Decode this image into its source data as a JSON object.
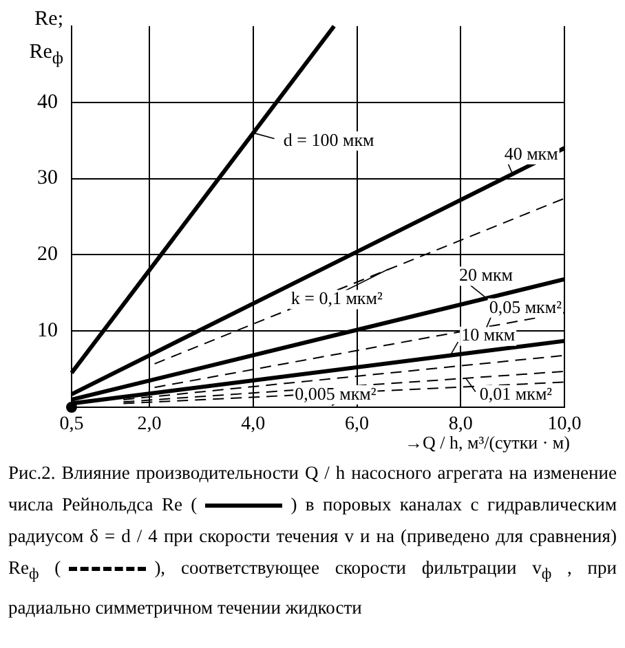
{
  "chart_data": {
    "type": "line",
    "ylabel": "Re;\nRe$_{ф}$",
    "xlabel": "→Q / h, м³/(сутки · м)",
    "xlim": [
      0.5,
      10
    ],
    "ylim": [
      0,
      50
    ],
    "xticks": [
      {
        "value": 0.5,
        "label": "0,5"
      },
      {
        "value": 2,
        "label": "2,0"
      },
      {
        "value": 4,
        "label": "4,0"
      },
      {
        "value": 6,
        "label": "6,0"
      },
      {
        "value": 8,
        "label": "8,0"
      },
      {
        "value": 10,
        "label": "10,0"
      }
    ],
    "yticks": [
      10,
      20,
      30,
      40
    ],
    "grid": true,
    "legend": false,
    "marker": "none",
    "series": [
      {
        "x": [
          0.5,
          5.56
        ],
        "values": [
          4.5,
          50
        ],
        "color": "#000000",
        "line_style": "solid"
      },
      {
        "x": [
          0.5,
          10
        ],
        "values": [
          1.7,
          34
        ],
        "color": "#000000",
        "line_style": "solid"
      },
      {
        "x": [
          0.5,
          10
        ],
        "values": [
          1.0,
          16.8
        ],
        "color": "#000000",
        "line_style": "solid"
      },
      {
        "x": [
          0.5,
          10
        ],
        "values": [
          0.5,
          8.7
        ],
        "color": "#000000",
        "line_style": "solid"
      },
      {
        "x": [
          2.1,
          10
        ],
        "values": [
          5.7,
          27.4
        ],
        "color": "#000000",
        "line_style": "dashed"
      },
      {
        "x": [
          2.1,
          10
        ],
        "values": [
          2.6,
          12.4
        ],
        "color": "#000000",
        "line_style": "dashed"
      },
      {
        "x": [
          1.5,
          10
        ],
        "values": [
          1.0,
          6.8
        ],
        "color": "#000000",
        "line_style": "dashed"
      },
      {
        "x": [
          1.5,
          10
        ],
        "values": [
          0.7,
          4.7
        ],
        "color": "#000000",
        "line_style": "dashed"
      },
      {
        "x": [
          1.5,
          10
        ],
        "values": [
          0.5,
          3.3
        ],
        "color": "#000000",
        "line_style": "dashed"
      },
      {
        "type": "scatter",
        "x": [
          0.5
        ],
        "values": [
          0
        ],
        "color": "#000000",
        "marker": "circle"
      }
    ],
    "annotations": [
      {
        "text": "d = 100 мкм",
        "x": 4.0,
        "y": 36
      },
      {
        "text": "40 мкм",
        "x": 9.0,
        "y": 30.6
      },
      {
        "text": "20 мкм",
        "x": 8.5,
        "y": 14.3
      },
      {
        "text": "10 мкм",
        "x": 7.8,
        "y": 6.8
      },
      {
        "text": "k = 0,1 мкм²",
        "x": 6.6,
        "y": 18.1
      },
      {
        "text": "0,05 мкм²",
        "x": 8.5,
        "y": 10.5
      },
      {
        "text": "0,01 мкм²",
        "x": 8.1,
        "y": 3.8
      },
      {
        "text": "0,005 мкм²",
        "x": 6.0,
        "y": 2.0
      },
      "Рис.2. Влияние производительности  Q / h  насосного агрегата на изменение числа Рейнольдса  Re (",
      ") в поровых каналах с гидравлическим радиусом  δ = d / 4  при скорости течения  v  и на (приведено для сравнения)  Re$_{ф}$ (",
      "), соответствующее скорости фильтрации  v$_{ф}$ , при радиально симметричном течении жидкости"
    ]
  }
}
